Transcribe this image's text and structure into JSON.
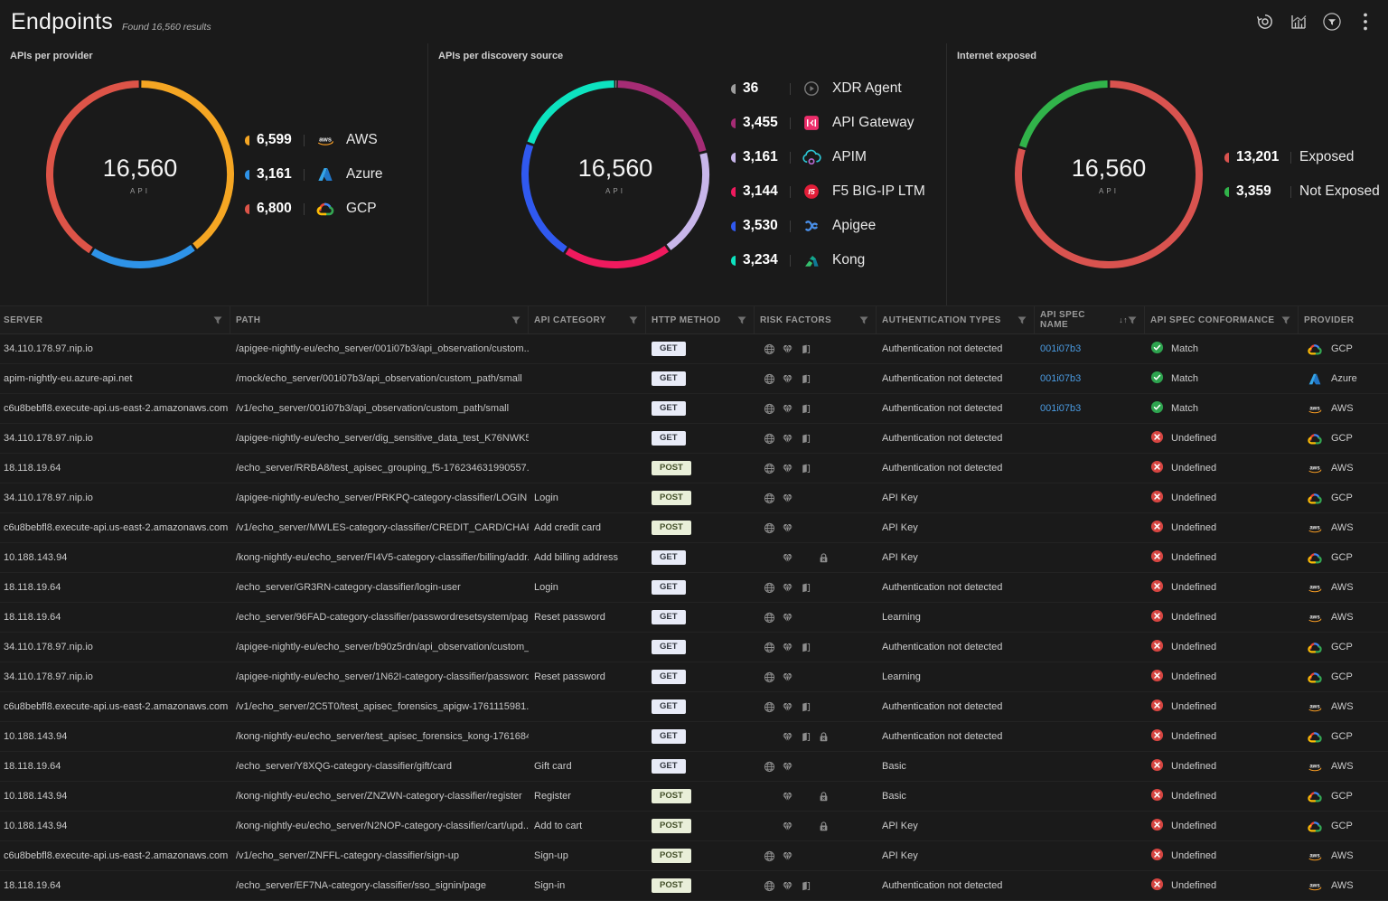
{
  "header": {
    "title": "Endpoints",
    "subtitle": "Found 16,560 results"
  },
  "toolbar": {
    "buttons": [
      {
        "name": "history"
      },
      {
        "name": "chart"
      },
      {
        "name": "filter"
      },
      {
        "name": "more"
      }
    ]
  },
  "charts": [
    {
      "title": "APIs per provider",
      "type": "donut",
      "center_value": "16,560",
      "center_label": "API",
      "segments": [
        {
          "label": "AWS",
          "value": 6599,
          "display": "6,599",
          "color": "#f5a623",
          "icon": "aws"
        },
        {
          "label": "Azure",
          "value": 3161,
          "display": "3,161",
          "color": "#2e93e8",
          "icon": "azure"
        },
        {
          "label": "GCP",
          "value": 6800,
          "display": "6,800",
          "color": "#dd5448",
          "icon": "gcp"
        }
      ]
    },
    {
      "title": "APIs per discovery source",
      "type": "donut",
      "center_value": "16,560",
      "center_label": "API",
      "segments": [
        {
          "label": "XDR Agent",
          "value": 36,
          "display": "36",
          "color": "#9e9e9e",
          "icon": "xdr"
        },
        {
          "label": "API Gateway",
          "value": 3455,
          "display": "3,455",
          "color": "#a62c75",
          "icon": "api-gateway"
        },
        {
          "label": "APIM",
          "value": 3161,
          "display": "3,161",
          "color": "#c8b6ea",
          "icon": "apim"
        },
        {
          "label": "F5 BIG-IP LTM",
          "value": 3144,
          "display": "3,144",
          "color": "#ef1a5e",
          "icon": "f5"
        },
        {
          "label": "Apigee",
          "value": 3530,
          "display": "3,530",
          "color": "#3059ef",
          "icon": "apigee"
        },
        {
          "label": "Kong",
          "value": 3234,
          "display": "3,234",
          "color": "#0de3c0",
          "icon": "kong"
        }
      ]
    },
    {
      "title": "Internet exposed",
      "type": "donut",
      "center_value": "16,560",
      "center_label": "API",
      "segments": [
        {
          "label": "Exposed",
          "value": 13201,
          "display": "13,201",
          "color": "#d9534f"
        },
        {
          "label": "Not Exposed",
          "value": 3359,
          "display": "3,359",
          "color": "#31b34a"
        }
      ]
    }
  ],
  "table": {
    "columns": [
      {
        "label": "SERVER",
        "filter": true
      },
      {
        "label": "PATH",
        "filter": true
      },
      {
        "label": "API CATEGORY",
        "filter": true
      },
      {
        "label": "HTTP METHOD",
        "filter": true
      },
      {
        "label": "RISK FACTORS",
        "filter": true
      },
      {
        "label": "AUTHENTICATION TYPES",
        "filter": true
      },
      {
        "label": "API SPEC NAME",
        "filter": true,
        "sort": "↓↑"
      },
      {
        "label": "API SPEC CONFORMANCE",
        "filter": true
      },
      {
        "label": "PROVIDER",
        "filter": false
      }
    ],
    "rows": [
      {
        "server": "34.110.178.97.nip.io",
        "path": "/apigee-nightly-eu/echo_server/001i07b3/api_observation/custom...",
        "category": "",
        "method": "GET",
        "risks": [
          "globe",
          "gem",
          "door"
        ],
        "auth": "Authentication not detected",
        "spec_name": "001i07b3",
        "conformance": "Match",
        "provider": {
          "icon": "gcp",
          "label": "GCP"
        }
      },
      {
        "server": "apim-nightly-eu.azure-api.net",
        "path": "/mock/echo_server/001i07b3/api_observation/custom_path/small",
        "category": "",
        "method": "GET",
        "risks": [
          "globe",
          "gem",
          "door"
        ],
        "auth": "Authentication not detected",
        "spec_name": "001i07b3",
        "conformance": "Match",
        "provider": {
          "icon": "azure",
          "label": "Azure"
        }
      },
      {
        "server": "c6u8bebfl8.execute-api.us-east-2.amazonaws.com",
        "path": "/v1/echo_server/001i07b3/api_observation/custom_path/small",
        "category": "",
        "method": "GET",
        "risks": [
          "globe",
          "gem",
          "door"
        ],
        "auth": "Authentication not detected",
        "spec_name": "001i07b3",
        "conformance": "Match",
        "provider": {
          "icon": "aws",
          "label": "AWS"
        }
      },
      {
        "server": "34.110.178.97.nip.io",
        "path": "/apigee-nightly-eu/echo_server/dig_sensitive_data_test_K76NWK5...",
        "category": "",
        "method": "GET",
        "risks": [
          "globe",
          "gem",
          "door"
        ],
        "auth": "Authentication not detected",
        "spec_name": "",
        "conformance": "Undefined",
        "provider": {
          "icon": "gcp",
          "label": "GCP"
        }
      },
      {
        "server": "18.118.19.64",
        "path": "/echo_server/RRBA8/test_apisec_grouping_f5-176234631990557...",
        "category": "",
        "method": "POST",
        "risks": [
          "globe",
          "gem",
          "door"
        ],
        "auth": "Authentication not detected",
        "spec_name": "",
        "conformance": "Undefined",
        "provider": {
          "icon": "aws",
          "label": "AWS"
        }
      },
      {
        "server": "34.110.178.97.nip.io",
        "path": "/apigee-nightly-eu/echo_server/PRKPQ-category-classifier/LOGIN",
        "category": "Login",
        "method": "POST",
        "risks": [
          "globe",
          "gem"
        ],
        "auth": "API Key",
        "spec_name": "",
        "conformance": "Undefined",
        "provider": {
          "icon": "gcp",
          "label": "GCP"
        }
      },
      {
        "server": "c6u8bebfl8.execute-api.us-east-2.amazonaws.com",
        "path": "/v1/echo_server/MWLES-category-classifier/CREDIT_CARD/CHAR...",
        "category": "Add credit card",
        "method": "POST",
        "risks": [
          "globe",
          "gem"
        ],
        "auth": "API Key",
        "spec_name": "",
        "conformance": "Undefined",
        "provider": {
          "icon": "aws",
          "label": "AWS"
        }
      },
      {
        "server": "10.188.143.94",
        "path": "/kong-nightly-eu/echo_server/FI4V5-category-classifier/billing/addr...",
        "category": "Add billing address",
        "method": "GET",
        "risks": [
          "gem",
          "lock"
        ],
        "auth": "API Key",
        "spec_name": "",
        "conformance": "Undefined",
        "provider": {
          "icon": "gcp",
          "label": "GCP"
        }
      },
      {
        "server": "18.118.19.64",
        "path": "/echo_server/GR3RN-category-classifier/login-user",
        "category": "Login",
        "method": "GET",
        "risks": [
          "globe",
          "gem",
          "door"
        ],
        "auth": "Authentication not detected",
        "spec_name": "",
        "conformance": "Undefined",
        "provider": {
          "icon": "aws",
          "label": "AWS"
        }
      },
      {
        "server": "18.118.19.64",
        "path": "/echo_server/96FAD-category-classifier/passwordresetsystem/page",
        "category": "Reset password",
        "method": "GET",
        "risks": [
          "globe",
          "gem"
        ],
        "auth": "Learning",
        "spec_name": "",
        "conformance": "Undefined",
        "provider": {
          "icon": "aws",
          "label": "AWS"
        }
      },
      {
        "server": "34.110.178.97.nip.io",
        "path": "/apigee-nightly-eu/echo_server/b90z5rdn/api_observation/custom_...",
        "category": "",
        "method": "GET",
        "risks": [
          "globe",
          "gem",
          "door"
        ],
        "auth": "Authentication not detected",
        "spec_name": "",
        "conformance": "Undefined",
        "provider": {
          "icon": "gcp",
          "label": "GCP"
        }
      },
      {
        "server": "34.110.178.97.nip.io",
        "path": "/apigee-nightly-eu/echo_server/1N62I-category-classifier/password...",
        "category": "Reset password",
        "method": "GET",
        "risks": [
          "globe",
          "gem"
        ],
        "auth": "Learning",
        "spec_name": "",
        "conformance": "Undefined",
        "provider": {
          "icon": "gcp",
          "label": "GCP"
        }
      },
      {
        "server": "c6u8bebfl8.execute-api.us-east-2.amazonaws.com",
        "path": "/v1/echo_server/2C5T0/test_apisec_forensics_apigw-1761115981...",
        "category": "",
        "method": "GET",
        "risks": [
          "globe",
          "gem",
          "door"
        ],
        "auth": "Authentication not detected",
        "spec_name": "",
        "conformance": "Undefined",
        "provider": {
          "icon": "aws",
          "label": "AWS"
        }
      },
      {
        "server": "10.188.143.94",
        "path": "/kong-nightly-eu/echo_server/test_apisec_forensics_kong-1761684...",
        "category": "",
        "method": "GET",
        "risks": [
          "gem",
          "door",
          "lock"
        ],
        "auth": "Authentication not detected",
        "spec_name": "",
        "conformance": "Undefined",
        "provider": {
          "icon": "gcp",
          "label": "GCP"
        }
      },
      {
        "server": "18.118.19.64",
        "path": "/echo_server/Y8XQG-category-classifier/gift/card",
        "category": "Gift card",
        "method": "GET",
        "risks": [
          "globe",
          "gem"
        ],
        "auth": "Basic",
        "spec_name": "",
        "conformance": "Undefined",
        "provider": {
          "icon": "aws",
          "label": "AWS"
        }
      },
      {
        "server": "10.188.143.94",
        "path": "/kong-nightly-eu/echo_server/ZNZWN-category-classifier/register",
        "category": "Register",
        "method": "POST",
        "risks": [
          "gem",
          "lock"
        ],
        "auth": "Basic",
        "spec_name": "",
        "conformance": "Undefined",
        "provider": {
          "icon": "gcp",
          "label": "GCP"
        }
      },
      {
        "server": "10.188.143.94",
        "path": "/kong-nightly-eu/echo_server/N2NOP-category-classifier/cart/upd...",
        "category": "Add to cart",
        "method": "POST",
        "risks": [
          "gem",
          "lock"
        ],
        "auth": "API Key",
        "spec_name": "",
        "conformance": "Undefined",
        "provider": {
          "icon": "gcp",
          "label": "GCP"
        }
      },
      {
        "server": "c6u8bebfl8.execute-api.us-east-2.amazonaws.com",
        "path": "/v1/echo_server/ZNFFL-category-classifier/sign-up",
        "category": "Sign-up",
        "method": "POST",
        "risks": [
          "globe",
          "gem"
        ],
        "auth": "API Key",
        "spec_name": "",
        "conformance": "Undefined",
        "provider": {
          "icon": "aws",
          "label": "AWS"
        }
      },
      {
        "server": "18.118.19.64",
        "path": "/echo_server/EF7NA-category-classifier/sso_signin/page",
        "category": "Sign-in",
        "method": "POST",
        "risks": [
          "globe",
          "gem",
          "door"
        ],
        "auth": "Authentication not detected",
        "spec_name": "",
        "conformance": "Undefined",
        "provider": {
          "icon": "aws",
          "label": "AWS"
        }
      }
    ]
  }
}
